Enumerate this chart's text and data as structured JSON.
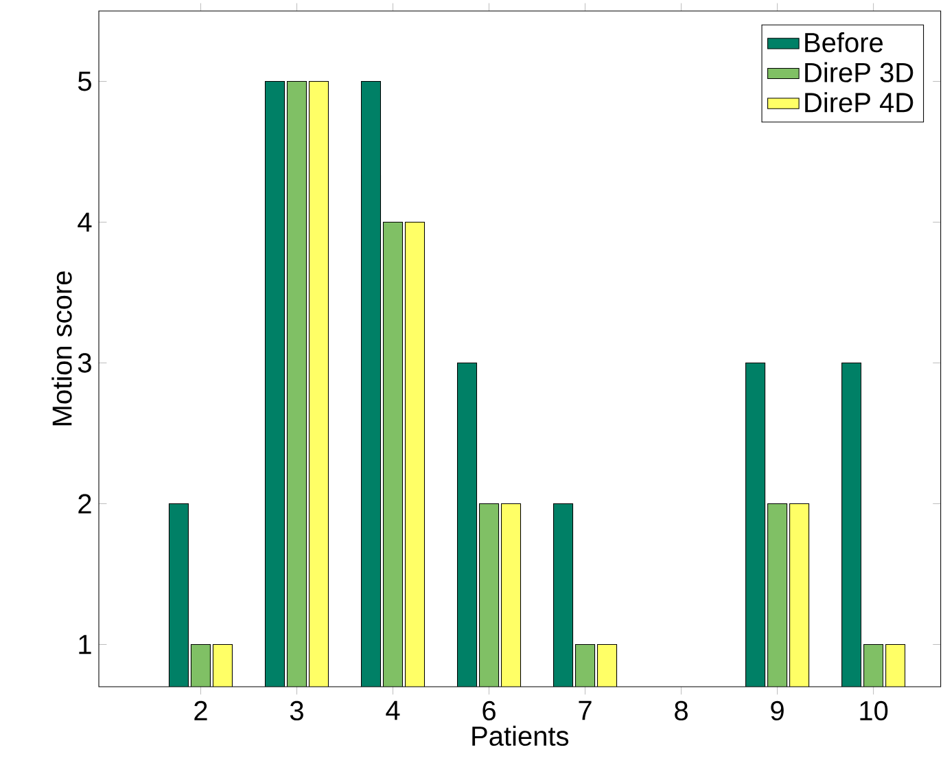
{
  "chart_data": {
    "type": "bar",
    "xlabel": "Patients",
    "ylabel": "Motion score",
    "categories": [
      "2",
      "3",
      "4",
      "6",
      "7",
      "8",
      "9",
      "10"
    ],
    "series": [
      {
        "name": "Before",
        "color": "#008066",
        "values": [
          2,
          5,
          5,
          3,
          2,
          null,
          3,
          3
        ]
      },
      {
        "name": "DireP 3D",
        "color": "#80c065",
        "values": [
          1,
          5,
          4,
          2,
          1,
          null,
          2,
          1
        ]
      },
      {
        "name": "DireP 4D",
        "color": "#ffff66",
        "values": [
          1,
          5,
          4,
          2,
          1,
          null,
          2,
          1
        ]
      }
    ],
    "ylim": [
      0.7,
      5.5
    ],
    "yticks": [
      1,
      2,
      3,
      4,
      5
    ],
    "grid": false,
    "legend": "top right"
  }
}
